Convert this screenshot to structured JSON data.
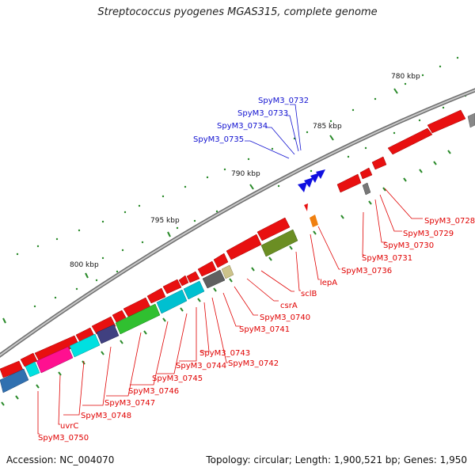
{
  "title": "Streptococcus pyogenes MGAS315, complete genome",
  "accession_label": "Accession: NC_004070",
  "info_label": "Topology: circular; Length: 1,900,521 bp; Genes: 1,950",
  "colors": {
    "forward_gene": "#e81010",
    "reverse_gene": "#e81010",
    "blue_gene": "#1010e0",
    "orange_gene": "#f08010",
    "backbone": "#888888",
    "tick": "#2a8a2a",
    "red_label": "#e00000",
    "blue_label": "#1010d0"
  },
  "kbp_ticks": [
    "780 kbp",
    "785 kbp",
    "790 kbp",
    "795 kbp",
    "800 kbp"
  ],
  "blue_labels": [
    "SpyM3_0732",
    "SpyM3_0733",
    "SpyM3_0734",
    "SpyM3_0735"
  ],
  "red_labels_right": [
    "SpyM3_0728",
    "SpyM3_0729",
    "SpyM3_0730",
    "SpyM3_0731",
    "SpyM3_0736",
    "lepA",
    "sclB",
    "csrA",
    "SpyM3_0740",
    "SpyM3_0741"
  ],
  "red_labels_bottom": [
    "SpyM3_0742",
    "SpyM3_0743",
    "SpyM3_0744",
    "SpyM3_0745",
    "SpyM3_0746",
    "SpyM3_0747",
    "SpyM3_0748",
    "uvrC",
    "SpyM3_0750"
  ]
}
